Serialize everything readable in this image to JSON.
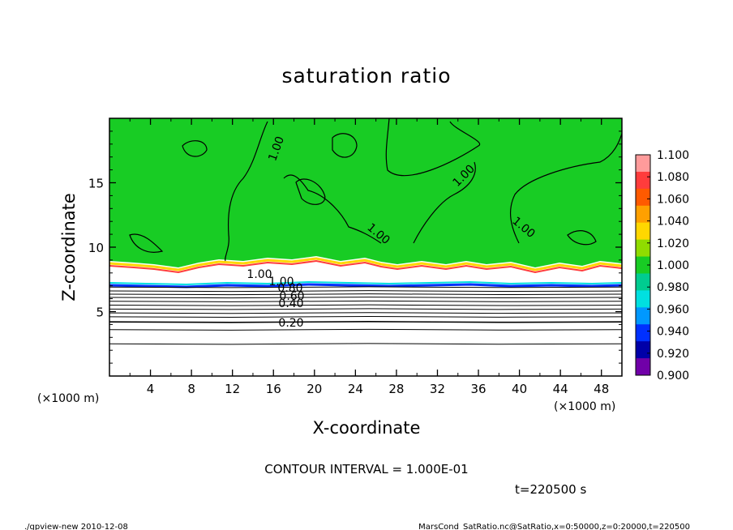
{
  "chart_data": {
    "type": "heatmap",
    "title": "saturation ratio",
    "xlabel": "X-coordinate",
    "ylabel": "Z-coordinate",
    "x_unit_left": "(×1000 m)",
    "x_unit_right": "(×1000 m)",
    "xlim": [
      0,
      50
    ],
    "ylim": [
      0,
      20
    ],
    "x_ticks": [
      "4",
      "8",
      "12",
      "16",
      "20",
      "24",
      "28",
      "32",
      "36",
      "40",
      "44",
      "48"
    ],
    "y_ticks": [
      "5",
      "10",
      "15"
    ],
    "colorbar": {
      "levels": [
        "1.100",
        "1.080",
        "1.060",
        "1.040",
        "1.020",
        "1.000",
        "0.980",
        "0.960",
        "0.940",
        "0.920",
        "0.900"
      ],
      "colors": [
        "#ff9b9b",
        "#ff3c3c",
        "#ff5a00",
        "#ffa000",
        "#ffd700",
        "#90dc00",
        "#18cc24",
        "#00cc90",
        "#00e0e0",
        "#0098ff",
        "#0030ff",
        "#0000a8",
        "#7000a8"
      ]
    },
    "contour_labels": [
      "1.00",
      "1.00",
      "1.00",
      "1.00",
      "1.00",
      "1.00",
      "0.80",
      "0.60",
      "0.40",
      "0.20"
    ],
    "contour_interval_text": "CONTOUR INTERVAL = 1.000E-01",
    "time_text": "t=220500 s",
    "field_color": "#18cc24",
    "footer_left": "./gpview-new   2010-12-08",
    "footer_right": "MarsCond_SatRatio.nc@SatRatio,x=0:50000,z=0:20000,t=220500"
  }
}
